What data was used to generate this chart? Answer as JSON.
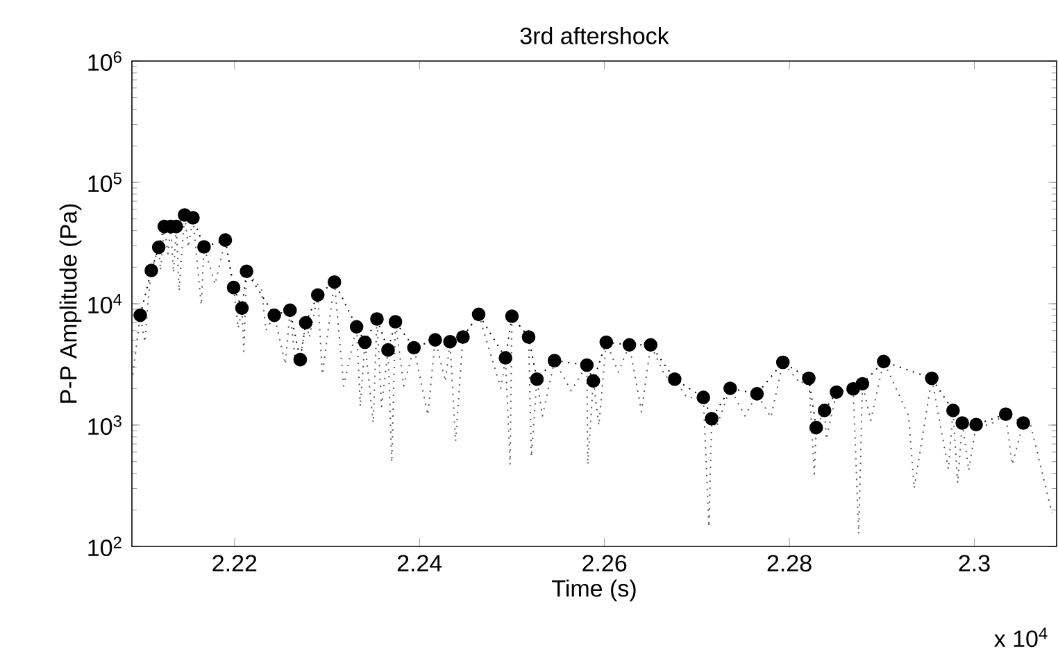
{
  "chart_data": {
    "type": "line",
    "title": "3rd aftershock",
    "xlabel": "Time (s)",
    "ylabel": "P-P Amplitude (Pa)",
    "log": "y",
    "grid": false,
    "xlim": [
      2.2089,
      2.3089
    ],
    "xticks": [
      2.22,
      2.24,
      2.26,
      2.28,
      2.3
    ],
    "ylim": [
      100,
      1000000
    ],
    "yticks": [
      {
        "value": 100,
        "label": "10$^{2}$"
      },
      {
        "value": 1000,
        "label": "10$^{3}$"
      },
      {
        "value": 10000,
        "label": "10$^{4}$"
      },
      {
        "value": 100000,
        "label": "10$^{5}$"
      },
      {
        "value": 1000000,
        "label": "10$^{6}$"
      }
    ],
    "annotations": [
      "x 10$^{4}$"
    ],
    "series": [
      {
        "color": "#555555",
        "line_style": "dotted",
        "marker": "none",
        "x": [
          2.209,
          2.2098,
          2.2103,
          2.2107,
          2.211,
          2.2118,
          2.212,
          2.2124,
          2.2128,
          2.2131,
          2.2134,
          2.2137,
          2.214,
          2.2146,
          2.215,
          2.2155,
          2.2164,
          2.2167,
          2.2179,
          2.219,
          2.2199,
          2.2204,
          2.2208,
          2.221,
          2.2213,
          2.2229,
          2.2234,
          2.2243,
          2.2255,
          2.226,
          2.2266,
          2.2271,
          2.2277,
          2.2281,
          2.229,
          2.2295,
          2.2308,
          2.2318,
          2.2332,
          2.2336,
          2.2341,
          2.235,
          2.2354,
          2.2359,
          2.2366,
          2.237,
          2.2374,
          2.2383,
          2.2394,
          2.2409,
          2.2417,
          2.2428,
          2.2433,
          2.2439,
          2.2447,
          2.2464,
          2.2488,
          2.2493,
          2.2498,
          2.25,
          2.2518,
          2.2521,
          2.2527,
          2.2533,
          2.2546,
          2.2564,
          2.2581,
          2.2582,
          2.2588,
          2.2594,
          2.2602,
          2.2615,
          2.2627,
          2.264,
          2.265,
          2.2666,
          2.2676,
          2.2689,
          2.2707,
          2.2713,
          2.2716,
          2.2721,
          2.2736,
          2.2752,
          2.2765,
          2.278,
          2.2793,
          2.2812,
          2.2821,
          2.2827,
          2.2829,
          2.2838,
          2.284,
          2.2851,
          2.2869,
          2.2875,
          2.2879,
          2.2888,
          2.2902,
          2.2929,
          2.2935,
          2.2954,
          2.2972,
          2.2977,
          2.2982,
          2.2987,
          2.2994,
          2.3002,
          2.3016,
          2.3034,
          2.3041,
          2.3053,
          2.3061,
          2.3084
        ],
        "values": [
          2610,
          8040,
          4820,
          11700,
          18800,
          29200,
          18800,
          43300,
          25800,
          43300,
          18000,
          43300,
          12700,
          53900,
          29200,
          51100,
          9750,
          29400,
          14500,
          33500,
          13600,
          6280,
          9200,
          4050,
          18500,
          13300,
          6020,
          8040,
          3170,
          8840,
          3170,
          3460,
          6970,
          5280,
          11800,
          2610,
          15100,
          2100,
          6450,
          1420,
          4820,
          1040,
          7490,
          1420,
          4160,
          494,
          7100,
          2100,
          4340,
          1210,
          5040,
          2290,
          4870,
          733,
          5320,
          8170,
          2010,
          3580,
          472,
          7890,
          5320,
          549,
          2390,
          1190,
          3400,
          1920,
          3120,
          472,
          2310,
          995,
          4820,
          2730,
          4580,
          1290,
          4580,
          2500,
          2390,
          1690,
          1690,
          145,
          1130,
          953,
          2010,
          1190,
          1810,
          1160,
          3290,
          2190,
          2430,
          396,
          953,
          1320,
          764,
          1870,
          1990,
          127,
          2190,
          1090,
          3340,
          1190,
          300,
          2430,
          433,
          1320,
          333,
          1040,
          422,
          1010,
          995,
          1230,
          472,
          1040,
          995,
          188
        ]
      },
      {
        "color": "#000000",
        "line_style": "dotted",
        "marker": "circle",
        "x": [
          2.2098,
          2.211,
          2.2118,
          2.2124,
          2.2131,
          2.2137,
          2.2146,
          2.2155,
          2.2167,
          2.219,
          2.2199,
          2.2208,
          2.2213,
          2.2243,
          2.226,
          2.2271,
          2.2277,
          2.229,
          2.2308,
          2.2332,
          2.2341,
          2.2354,
          2.2366,
          2.2374,
          2.2394,
          2.2417,
          2.2433,
          2.2447,
          2.2464,
          2.2493,
          2.25,
          2.2518,
          2.2527,
          2.2546,
          2.2581,
          2.2588,
          2.2602,
          2.2627,
          2.265,
          2.2676,
          2.2707,
          2.2716,
          2.2736,
          2.2765,
          2.2793,
          2.2821,
          2.2829,
          2.2838,
          2.2851,
          2.2869,
          2.2879,
          2.2902,
          2.2954,
          2.2977,
          2.2987,
          2.3002,
          2.3034,
          2.3053
        ],
        "values": [
          8040,
          18800,
          29200,
          43300,
          43300,
          43300,
          53900,
          51100,
          29400,
          33500,
          13600,
          9200,
          18500,
          8040,
          8840,
          3460,
          6970,
          11800,
          15100,
          6450,
          4820,
          7490,
          4160,
          7100,
          4340,
          5040,
          4870,
          5320,
          8170,
          3580,
          7890,
          5320,
          2390,
          3400,
          3120,
          2310,
          4820,
          4580,
          4580,
          2390,
          1690,
          1130,
          2010,
          1810,
          3290,
          2430,
          953,
          1320,
          1870,
          1990,
          2190,
          3340,
          2430,
          1320,
          1040,
          1010,
          1230,
          1040
        ]
      }
    ]
  }
}
